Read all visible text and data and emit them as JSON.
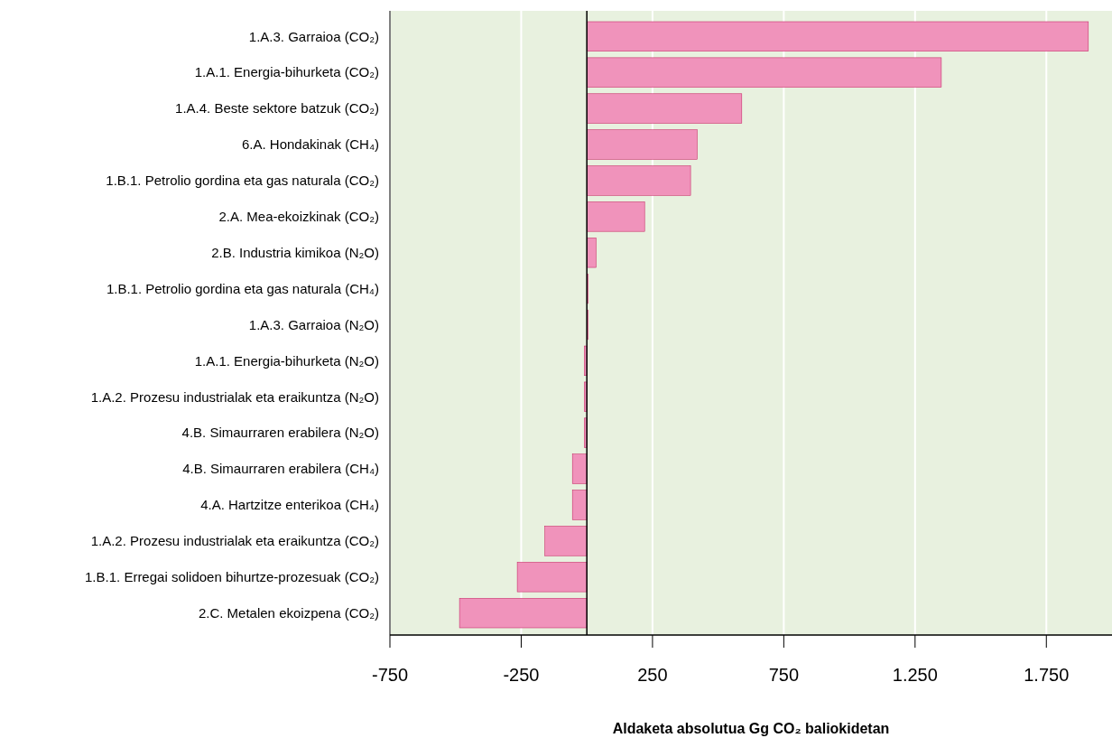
{
  "chart_data": {
    "type": "bar",
    "orientation": "horizontal",
    "xlabel": "Aldaketa absolutua Gg CO₂ baliokidetan",
    "categories": [
      "1.A.3. Garraioa (CO₂)",
      "1.A.1. Energia-bihurketa (CO₂)",
      "1.A.4. Beste sektore batzuk (CO₂)",
      "6.A. Hondakinak (CH₄)",
      "1.B.1. Petrolio gordina eta gas naturala (CO₂)",
      "2.A. Mea-ekoizkinak (CO₂)",
      "2.B. Industria kimikoa (N₂O)",
      "1.B.1. Petrolio gordina eta gas naturala (CH₄)",
      "1.A.3. Garraioa (N₂O)",
      "1.A.1. Energia-bihurketa (N₂O)",
      "1.A.2. Prozesu industrialak eta eraikuntza (N₂O)",
      "4.B. Simaurraren erabilera (N₂O)",
      "4.B. Simaurraren erabilera (CH₄)",
      "4.A. Hartzitze enterikoa (CH₄)",
      "1.A.2. Prozesu industrialak eta eraikuntza (CO₂)",
      "1.B.1. Erregai solidoen bihurtze-prozesuak (CO₂)",
      "2.C. Metalen ekoizpena (CO₂)"
    ],
    "values": [
      1910,
      1350,
      590,
      420,
      395,
      220,
      35,
      5,
      5,
      -10,
      -10,
      -10,
      -55,
      -55,
      -160,
      -265,
      -485
    ],
    "color": "#f093bb",
    "xlim": [
      -750,
      2000
    ],
    "xticks": [
      -750,
      -250,
      250,
      750,
      {
        "value": 1250,
        "label": "1.250"
      },
      {
        "value": 1750,
        "label": "1.750"
      }
    ],
    "grid": "x"
  }
}
